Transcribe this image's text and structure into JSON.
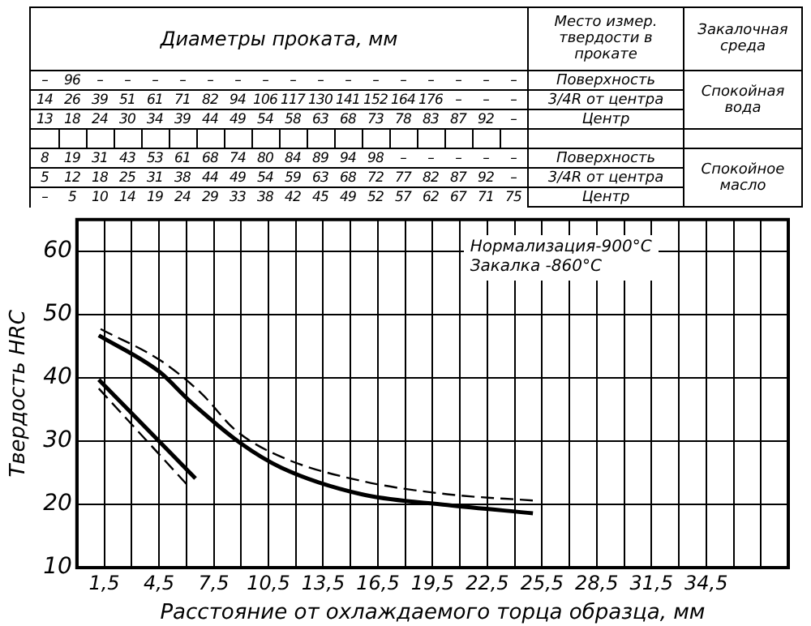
{
  "chart_data": {
    "type": "line",
    "xlabel": "Расстояние от охлаждаемого торца образца, мм",
    "ylabel": "Твердость HRC",
    "annotations": [
      "Диаметры проката, мм",
      "Место измер. твердости в прокате",
      "Закалочная среда",
      "– 96 – – – – – – – – – – – – – – – –",
      "14 26 39 51 61 71 82 94 106 117 130 141 152 164 176 – – –",
      "13 18 24 30 34 39 44 49 54 58 63 68 73 78 83 87 92 –",
      "Поверхность",
      "3/4R от центра",
      "Центр",
      "Спокойная вода",
      "8 19 31 43 53 61 68 74 80 84 89 94 98 – – – – –",
      "5 12 18 25 31 38 44 49 54 59 63 68 72 77 82 87 92 –",
      "– 5 10 14 19 24 29 33 38 42 45 49 52 57 62 67 71 75",
      "Поверхность",
      "3/4R от центра",
      "Центр",
      "Спокойное масло",
      "Нормализация-900°C",
      "Закалка -860°C"
    ],
    "xlim": [
      0,
      39
    ],
    "xticks": [
      {
        "value": 1.5,
        "label": "1,5"
      },
      {
        "value": 3,
        "label": null
      },
      {
        "value": 4.5,
        "label": "4,5"
      },
      {
        "value": 6,
        "label": null
      },
      {
        "value": 7.5,
        "label": "7,5"
      },
      {
        "value": 9,
        "label": null
      },
      {
        "value": 10.5,
        "label": "10,5"
      },
      {
        "value": 12,
        "label": null
      },
      {
        "value": 13.5,
        "label": "13,5"
      },
      {
        "value": 15,
        "label": null
      },
      {
        "value": 16.5,
        "label": "16,5"
      },
      {
        "value": 18,
        "label": null
      },
      {
        "value": 19.5,
        "label": "19,5"
      },
      {
        "value": 21,
        "label": null
      },
      {
        "value": 22.5,
        "label": "22,5"
      },
      {
        "value": 24,
        "label": null
      },
      {
        "value": 25.5,
        "label": "25,5"
      },
      {
        "value": 27,
        "label": null
      },
      {
        "value": 28.5,
        "label": "28,5"
      },
      {
        "value": 30,
        "label": null
      },
      {
        "value": 31.5,
        "label": "31,5"
      },
      {
        "value": 33,
        "label": null
      },
      {
        "value": 34.5,
        "label": "34,5"
      },
      {
        "value": 36,
        "label": null
      },
      {
        "value": 37.5,
        "label": null
      }
    ],
    "ylim": [
      10,
      65
    ],
    "yticks": [
      10,
      20,
      30,
      40,
      50,
      60
    ],
    "grid": true,
    "legend": false,
    "marker": "none",
    "series": [
      {
        "color": "#000000",
        "line_style": "solid",
        "x": [
          1.2,
          4.5,
          6.2,
          9,
          11.2,
          15.6,
          20.3,
          25
        ],
        "values": [
          46.7,
          41,
          36.3,
          29.6,
          25.8,
          21.6,
          19.9,
          18.6
        ]
      },
      {
        "color": "#000000",
        "line_style": "dashed",
        "x": [
          1.3,
          4.6,
          6.8,
          8.7,
          11.2,
          15.6,
          20.3,
          25
        ],
        "values": [
          47.7,
          42.7,
          37.6,
          31.7,
          27.5,
          23.7,
          21.6,
          20.6
        ]
      },
      {
        "color": "#000000",
        "line_style": "solid",
        "x": [
          1.2,
          6.5
        ],
        "values": [
          39.7,
          24.1
        ]
      },
      {
        "color": "#000000",
        "line_style": "dashed",
        "x": [
          1.2,
          6.2
        ],
        "values": [
          38.3,
          22.6
        ]
      }
    ]
  }
}
